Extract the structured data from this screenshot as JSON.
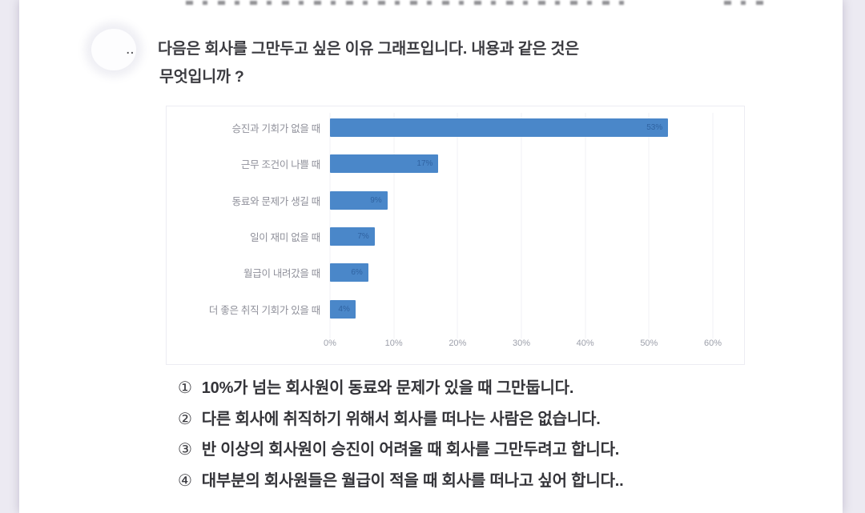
{
  "page": {
    "background_color": "#eceaf2",
    "paper_color": "#ffffff"
  },
  "question": {
    "prefix": "..",
    "line1": "다음은 회사를 그만두고 싶은 이유 그래프입니다. 내용과 같은 것은",
    "line2": "무엇입니까 ?"
  },
  "chart_data": {
    "type": "bar",
    "orientation": "horizontal",
    "title": "",
    "categories": [
      "승진과 기회가 없을 때",
      "근무 조건이 나쁠 때",
      "동료와 문제가 생길 때",
      "일이 재미 없을 때",
      "월급이 내려갔을 때",
      "더 좋은 취직 기회가 있을 때"
    ],
    "values": [
      53,
      17,
      9,
      7,
      6,
      4
    ],
    "value_labels": [
      "53%",
      "17%",
      "9%",
      "7%",
      "6%",
      "4%"
    ],
    "x_ticks": [
      0,
      10,
      20,
      30,
      40,
      50,
      60
    ],
    "x_tick_labels": [
      "0%",
      "10%",
      "20%",
      "30%",
      "40%",
      "50%",
      "60%"
    ],
    "xlim": [
      0,
      60
    ],
    "grid": true,
    "legend_position": "none",
    "bar_color": "#4a87c9",
    "value_label_color": "#2d5f9d",
    "category_label_color": "#8f909a",
    "tick_label_color": "#9da0ab"
  },
  "options": [
    {
      "marker": "①",
      "text": "10%가 넘는 회사원이 동료와 문제가 있을 때 그만둡니다."
    },
    {
      "marker": "②",
      "text": "다른 회사에 취직하기 위해서 회사를 떠나는 사람은 없습니다."
    },
    {
      "marker": "③",
      "text": "반 이상의 회사원이 승진이 어려울 때 회사를 그만두려고 합니다."
    },
    {
      "marker": "④",
      "text": "대부분의 회사원들은 월급이 적을 때 회사를 떠나고 싶어 합니다.."
    }
  ]
}
